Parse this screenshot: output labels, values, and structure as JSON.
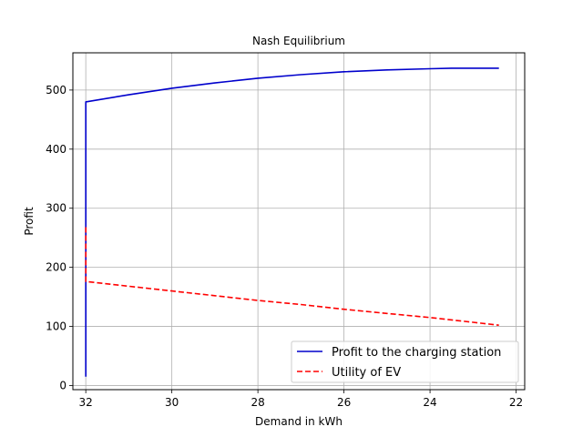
{
  "chart_data": {
    "type": "line",
    "title": "Nash Equilibrium",
    "xlabel": "Demand in kWh",
    "ylabel": "Profit",
    "xlim": [
      32.3,
      21.8
    ],
    "ylim": [
      -7,
      563
    ],
    "x_inverted": true,
    "grid": true,
    "legend_position": "lower-right",
    "xticks": [
      32,
      30,
      28,
      26,
      24,
      22
    ],
    "yticks": [
      0,
      100,
      200,
      300,
      400,
      500
    ],
    "series": [
      {
        "name": "Profit to the charging station",
        "color": "#0000cc",
        "style": "solid",
        "x": [
          32.0,
          32.0,
          31.0,
          30.0,
          29.0,
          28.0,
          27.0,
          26.0,
          25.0,
          24.0,
          23.5,
          23.0,
          22.4
        ],
        "y": [
          15,
          480,
          492,
          503,
          512,
          520,
          526,
          531,
          534,
          536,
          537,
          537,
          537
        ]
      },
      {
        "name": "Utility of EV",
        "color": "#ff0000",
        "style": "dashed",
        "x": [
          32.0,
          32.0,
          31.0,
          30.0,
          29.0,
          28.0,
          27.0,
          26.0,
          25.0,
          24.0,
          23.0,
          22.4
        ],
        "y": [
          268,
          176,
          168,
          160,
          152,
          144,
          137,
          129,
          122,
          115,
          107,
          102
        ]
      }
    ]
  }
}
